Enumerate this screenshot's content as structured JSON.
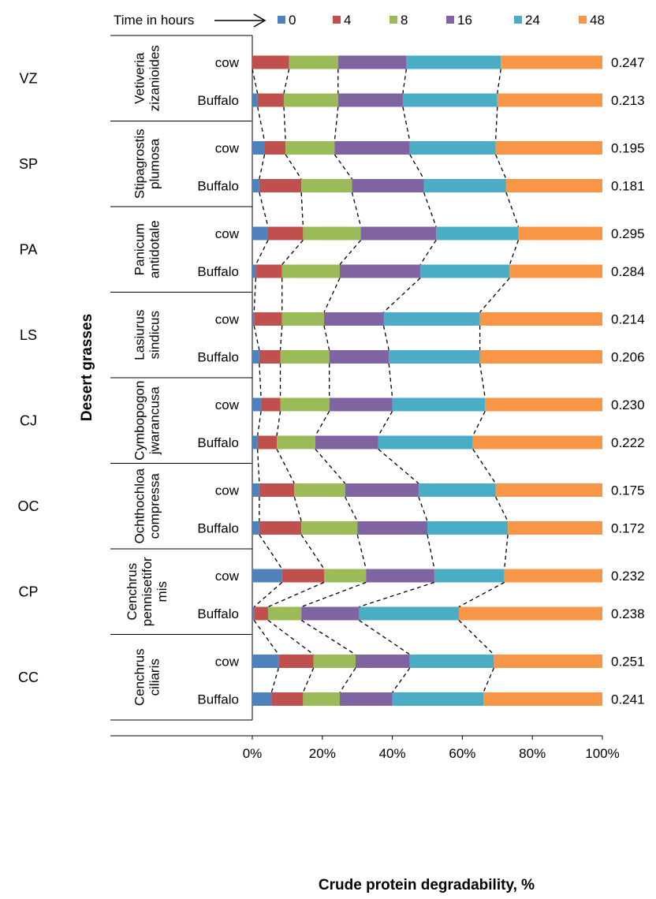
{
  "chart_data": {
    "type": "bar",
    "stacked": true,
    "percent_stacked": true,
    "orientation": "horizontal",
    "xlabel": "Crude protein degradability, %",
    "ylabel": "Desert grasses",
    "legend_title": "Time in hours",
    "legend_placement": "top",
    "xlim": [
      0,
      100
    ],
    "x_ticks": [
      "0%",
      "20%",
      "40%",
      "60%",
      "80%",
      "100%"
    ],
    "grid": false,
    "connector_lines": "dashed",
    "series_names": [
      "0",
      "4",
      "8",
      "16",
      "24",
      "48"
    ],
    "colors": [
      "#4f81bd",
      "#c0504d",
      "#9bbb59",
      "#8064a2",
      "#4bacc6",
      "#f79646"
    ],
    "groups": [
      {
        "code": "VZ",
        "name_lines": [
          "Vetiveria",
          "zizanioides"
        ],
        "bars": [
          {
            "animal": "cow",
            "value_label": "0.247",
            "cumulative": [
              0,
              10.5,
              24.5,
              44,
              71,
              100
            ]
          },
          {
            "animal": "Buffalo",
            "value_label": "0.213",
            "cumulative": [
              1.5,
              9,
              24.5,
              43,
              70,
              100
            ]
          }
        ]
      },
      {
        "code": "SP",
        "name_lines": [
          "Stipagrostis",
          "plumosa"
        ],
        "bars": [
          {
            "animal": "cow",
            "value_label": "0.195",
            "cumulative": [
              3.5,
              9.5,
              23.5,
              45,
              69.5,
              100
            ]
          },
          {
            "animal": "Buffalo",
            "value_label": "0.181",
            "cumulative": [
              2,
              14,
              28.5,
              49,
              72.5,
              100
            ]
          }
        ]
      },
      {
        "code": "PA",
        "name_lines": [
          "Panicum",
          "antidotale"
        ],
        "bars": [
          {
            "animal": "cow",
            "value_label": "0.295",
            "cumulative": [
              4.5,
              14.5,
              31,
              52.5,
              76,
              100
            ]
          },
          {
            "animal": "Buffalo",
            "value_label": "0.284",
            "cumulative": [
              1,
              8.5,
              25,
              48,
              73.5,
              100
            ]
          }
        ]
      },
      {
        "code": "LS",
        "name_lines": [
          "Lasiurus",
          "sindicus"
        ],
        "bars": [
          {
            "animal": "cow",
            "value_label": "0.214",
            "cumulative": [
              0.5,
              8.5,
              20.5,
              37.5,
              65,
              100
            ]
          },
          {
            "animal": "Buffalo",
            "value_label": "0.206",
            "cumulative": [
              2,
              8,
              22,
              39,
              65,
              100
            ]
          }
        ]
      },
      {
        "code": "CJ",
        "name_lines": [
          "Cymbopogon",
          "jwarancusa"
        ],
        "bars": [
          {
            "animal": "cow",
            "value_label": "0.230",
            "cumulative": [
              2.5,
              8,
              22,
              40,
              66.5,
              100
            ]
          },
          {
            "animal": "Buffalo",
            "value_label": "0.222",
            "cumulative": [
              1.5,
              7,
              18,
              36,
              63,
              100
            ]
          }
        ]
      },
      {
        "code": "OC",
        "name_lines": [
          "Ochthochloa",
          "compressa"
        ],
        "bars": [
          {
            "animal": "cow",
            "value_label": "0.175",
            "cumulative": [
              2,
              12,
              26.5,
              47.5,
              69.5,
              100
            ]
          },
          {
            "animal": "Buffalo",
            "value_label": "0.172",
            "cumulative": [
              2,
              14,
              30,
              50,
              73,
              100
            ]
          }
        ]
      },
      {
        "code": "CP",
        "name_lines": [
          "Cenchrus",
          "pennisetifor",
          "mis"
        ],
        "bars": [
          {
            "animal": "cow",
            "value_label": "0.232",
            "cumulative": [
              8.5,
              20.5,
              32.5,
              52,
              72,
              100
            ]
          },
          {
            "animal": "Buffalo",
            "value_label": "0.238",
            "cumulative": [
              0.5,
              4.5,
              14,
              30.5,
              59,
              100
            ]
          }
        ]
      },
      {
        "code": "CC",
        "name_lines": [
          "Cenchrus",
          "ciliaris"
        ],
        "bars": [
          {
            "animal": "cow",
            "value_label": "0.251",
            "cumulative": [
              7.5,
              17.5,
              29.5,
              45,
              69,
              100
            ]
          },
          {
            "animal": "Buffalo",
            "value_label": "0.241",
            "cumulative": [
              5.5,
              14.5,
              25,
              40,
              66,
              100
            ]
          }
        ]
      }
    ]
  }
}
